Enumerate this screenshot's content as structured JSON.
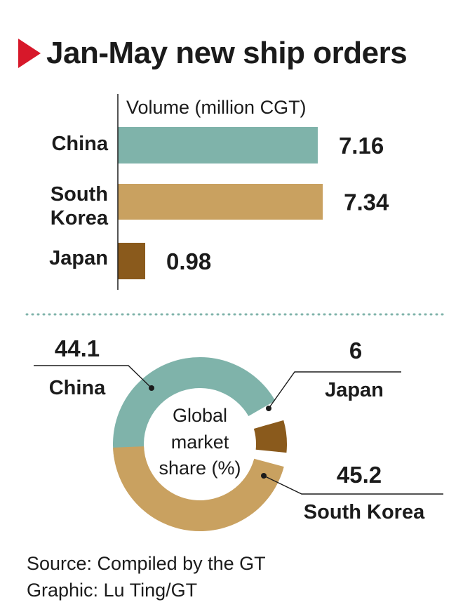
{
  "title": "Jan-May new ship orders",
  "colors": {
    "china": "#7fb3aa",
    "south_korea": "#c9a160",
    "japan": "#8a5a1c",
    "accent": "#d7182a",
    "divider": "#7fb3aa"
  },
  "chart_data": [
    {
      "type": "bar",
      "orientation": "horizontal",
      "xlabel": "Volume (million CGT)",
      "categories": [
        "China",
        "South\nKorea",
        "Japan"
      ],
      "values": [
        7.16,
        7.34,
        0.98
      ],
      "value_labels": [
        "7.16",
        "7.34",
        "0.98"
      ]
    },
    {
      "type": "pie",
      "style": "donut",
      "center_label": "Global market share (%)",
      "slices": [
        {
          "name": "China",
          "value": 44.1,
          "label": "44.1"
        },
        {
          "name": "Japan",
          "value": 6,
          "label": "6"
        },
        {
          "name": "South Korea",
          "value": 45.2,
          "label": "45.2"
        }
      ]
    }
  ],
  "source": "Source: Compiled by the GT",
  "graphic": "Graphic: Lu Ting/GT"
}
